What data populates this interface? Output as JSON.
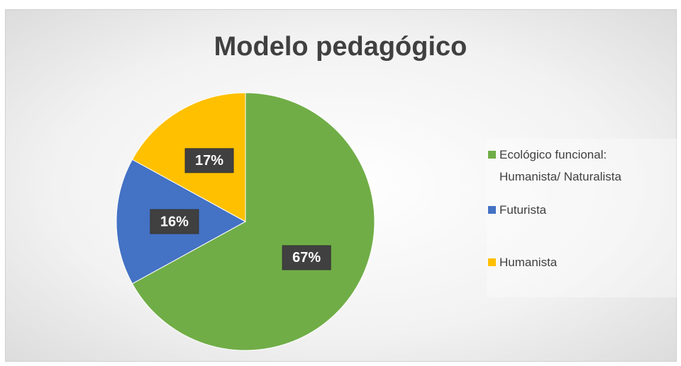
{
  "chart_data": {
    "type": "pie",
    "title": "Modelo pedagógico",
    "categories": [
      "Ecológico funcional: Humanista/ Naturalista",
      "Futurista",
      "Humanista"
    ],
    "values": [
      67,
      16,
      17
    ],
    "value_labels": [
      "67%",
      "16%",
      "17%"
    ],
    "colors": [
      "#70ad47",
      "#4472c4",
      "#ffc000"
    ],
    "legend": "right"
  }
}
